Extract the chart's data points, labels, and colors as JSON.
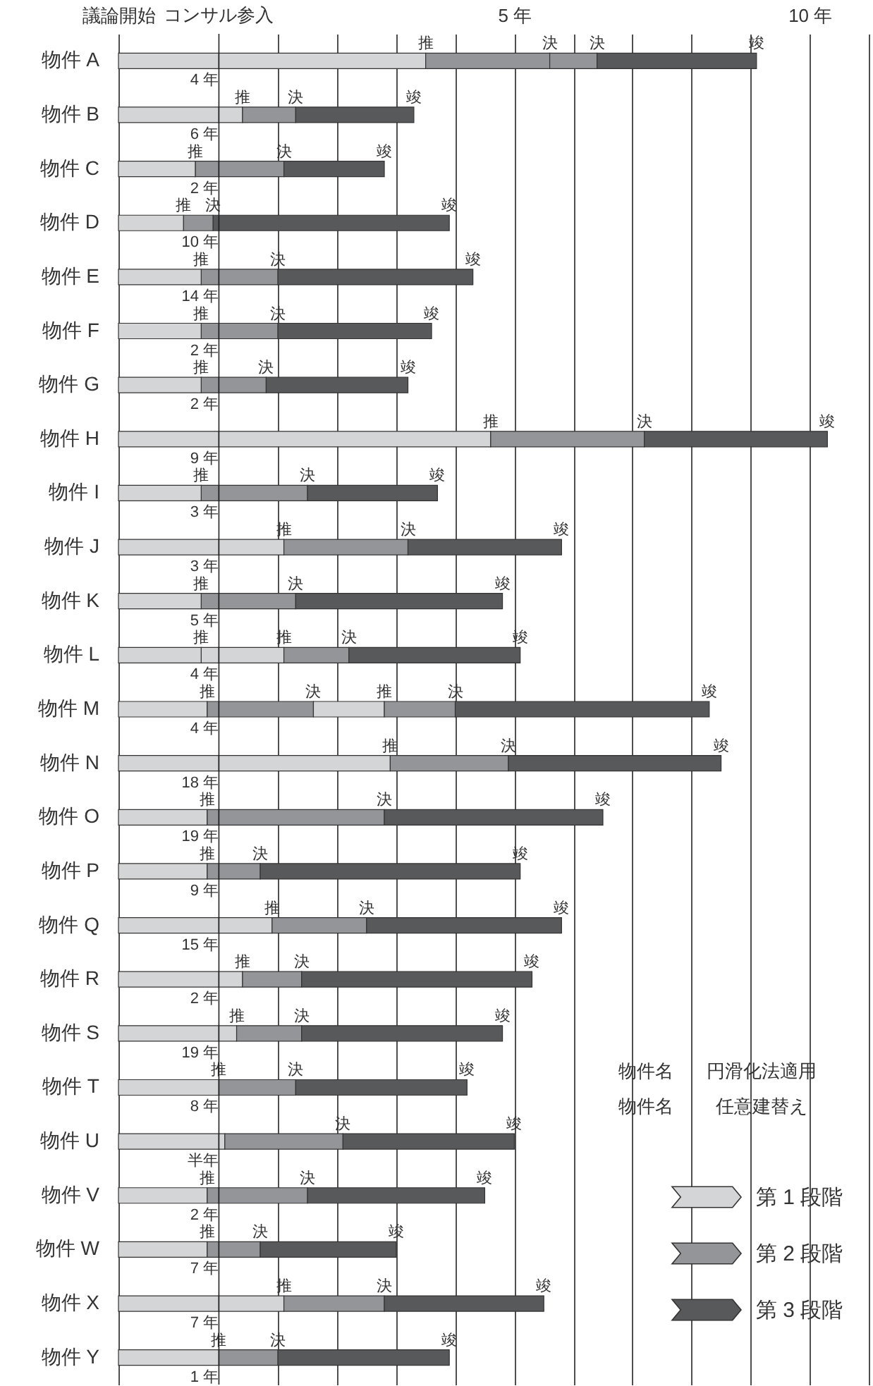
{
  "chart_data": {
    "type": "bar",
    "orientation": "horizontal",
    "stacked": true,
    "categories": [
      "物件 A",
      "物件 B",
      "物件 C",
      "物件 D",
      "物件 E",
      "物件 F",
      "物件 G",
      "物件 H",
      "物件 I",
      "物件 J",
      "物件 K",
      "物件 L",
      "物件 M",
      "物件 N",
      "物件 O",
      "物件 P",
      "物件 Q",
      "物件 R",
      "物件 S",
      "物件 T",
      "物件 U",
      "物件 V",
      "物件 W",
      "物件 X",
      "物件 Y"
    ],
    "series": [
      {
        "color": "#58595b",
        "values": [
          null,
          null,
          null,
          -0.1,
          null,
          null,
          null,
          null,
          null,
          null,
          null,
          null,
          null,
          null,
          null,
          null,
          null,
          null,
          null,
          null,
          null,
          null,
          null,
          null,
          null
        ]
      },
      {
        "color": "#939598",
        "values": [
          null,
          null,
          -0.4,
          -0.5,
          -0.3,
          -0.3,
          -0.3,
          null,
          -0.3,
          null,
          -0.3,
          null,
          -0.2,
          null,
          -0.2,
          -0.2,
          null,
          null,
          null,
          null,
          null,
          -0.2,
          -0.2,
          null,
          null
        ],
        "value_labels": [
          null,
          null,
          null,
          "決",
          null,
          null,
          null,
          null,
          null,
          null,
          null,
          null,
          null,
          null,
          null,
          null,
          null,
          null,
          null,
          null,
          null,
          null,
          null,
          null,
          null
        ]
      },
      {
        "color": "#d4d5d6",
        "values": [
          null,
          null,
          null,
          null,
          null,
          null,
          null,
          null,
          null,
          null,
          null,
          -0.3,
          null,
          null,
          null,
          null,
          null,
          null,
          null,
          null,
          null,
          null,
          null,
          null,
          null
        ]
      },
      {
        "color": "#d4d5d6",
        "values": [
          -1.7,
          -1.7,
          -1.3,
          -1.1,
          -1.4,
          -1.4,
          -1.4,
          -1.7,
          -1.4,
          -1.7,
          -1.4,
          -1.4,
          -1.5,
          -1.7,
          -1.5,
          -1.5,
          -1.7,
          -1.7,
          -1.7,
          -1.7,
          -1.7,
          -1.5,
          -1.5,
          -1.7,
          -1.7
        ],
        "value_labels": [
          null,
          null,
          "推",
          "推",
          "推",
          "推",
          "推",
          null,
          "推",
          null,
          "推",
          "推",
          "推",
          null,
          "推",
          "推",
          null,
          null,
          null,
          "推",
          null,
          "推",
          "推",
          null,
          "推"
        ]
      },
      {
        "name": "第 1 段階",
        "color": "#d4d5d6",
        "values": [
          3.5,
          0.4,
          null,
          null,
          null,
          null,
          null,
          4.6,
          null,
          1.1,
          null,
          null,
          null,
          2.9,
          null,
          null,
          0.9,
          0.4,
          0.3,
          null,
          0.1,
          null,
          null,
          1.1,
          null
        ],
        "value_labels": [
          "推",
          "推",
          null,
          null,
          null,
          null,
          null,
          "推",
          null,
          "推",
          null,
          null,
          null,
          "推",
          null,
          null,
          "推",
          "推",
          "推",
          null,
          null,
          null,
          null,
          "推",
          null
        ]
      },
      {
        "name": "第 2 段階",
        "color": "#939598",
        "values": [
          2.1,
          0.9,
          1.1,
          null,
          1.0,
          1.0,
          0.8,
          2.6,
          1.5,
          2.1,
          1.3,
          null,
          1.6,
          2.0,
          2.8,
          0.7,
          1.6,
          1.0,
          1.1,
          1.3,
          2.0,
          1.5,
          0.7,
          1.7,
          1.0
        ],
        "value_labels": [
          "決",
          "決",
          "決",
          null,
          "決",
          "決",
          "決",
          "決",
          "決",
          "決",
          "決",
          null,
          "決",
          "決",
          "決",
          "決",
          "決",
          "決",
          "決",
          "決",
          "決",
          "決",
          "決",
          "決",
          "決"
        ]
      },
      {
        "color": "#d4d5d6",
        "values": [
          null,
          null,
          null,
          null,
          null,
          null,
          null,
          null,
          null,
          null,
          null,
          1.1,
          1.2,
          null,
          null,
          null,
          null,
          null,
          null,
          null,
          null,
          null,
          null,
          null,
          null
        ],
        "value_labels": [
          null,
          null,
          null,
          null,
          null,
          null,
          null,
          null,
          null,
          null,
          null,
          "推",
          "推",
          null,
          null,
          null,
          null,
          null,
          null,
          null,
          null,
          null,
          null,
          null,
          null
        ]
      },
      {
        "color": "#939598",
        "values": [
          0.8,
          null,
          null,
          null,
          null,
          null,
          null,
          null,
          null,
          null,
          null,
          1.1,
          1.2,
          null,
          null,
          null,
          null,
          null,
          null,
          null,
          null,
          null,
          null,
          null,
          null
        ],
        "value_labels": [
          "決",
          null,
          null,
          null,
          null,
          null,
          null,
          null,
          null,
          null,
          null,
          "決",
          "決",
          null,
          null,
          null,
          null,
          null,
          null,
          null,
          null,
          null,
          null,
          null,
          null
        ]
      },
      {
        "name": "第 3 段階",
        "color": "#58595b",
        "values": [
          2.7,
          2.0,
          1.7,
          3.9,
          3.3,
          2.6,
          2.4,
          3.1,
          2.2,
          2.6,
          3.5,
          2.9,
          4.3,
          3.6,
          3.7,
          4.4,
          3.3,
          3.9,
          3.4,
          2.9,
          2.9,
          3.0,
          2.3,
          2.7,
          2.9
        ],
        "value_labels": [
          "竣",
          "竣",
          "竣",
          "竣",
          "竣",
          "竣",
          "竣",
          "竣",
          "竣",
          "竣",
          "竣",
          "竣",
          "竣",
          "竣",
          "竣",
          "竣",
          "竣",
          "竣",
          "竣",
          "竣",
          "竣",
          "竣",
          "竣",
          "竣",
          "竣"
        ]
      }
    ],
    "xlim": [
      -1.7,
      11
    ],
    "xticks": [
      {
        "value": -1.7,
        "label": "議論開始"
      },
      {
        "value": 1,
        "label": null
      },
      {
        "value": 2,
        "label": null
      },
      {
        "value": 3,
        "label": null
      },
      {
        "value": 4,
        "label": null
      },
      {
        "value": 5,
        "label": "5 年"
      },
      {
        "value": 6,
        "label": null
      },
      {
        "value": 7,
        "label": null
      },
      {
        "value": 8,
        "label": null
      },
      {
        "value": 9,
        "label": null
      },
      {
        "value": 10,
        "label": "10 年"
      },
      {
        "value": 11,
        "label": null
      }
    ],
    "ref_lines": [
      {
        "axis": "x",
        "value": 0,
        "label": "コンサル参入"
      }
    ],
    "grid": "x",
    "legend": "bottom right",
    "annotations": [
      "4 年",
      "6 年",
      "2 年",
      "10 年",
      "14 年",
      "2 年",
      "2 年",
      "9 年",
      "3 年",
      "3 年",
      "5 年",
      "4 年",
      "4 年",
      "18 年",
      "19 年",
      "9 年",
      "15 年",
      "2 年",
      "19 年",
      "8 年",
      "半年",
      "2 年",
      "7 年",
      "7 年",
      "1 年",
      "物件名",
      "円滑化法適用",
      "物件名",
      "任意建替え"
    ]
  }
}
